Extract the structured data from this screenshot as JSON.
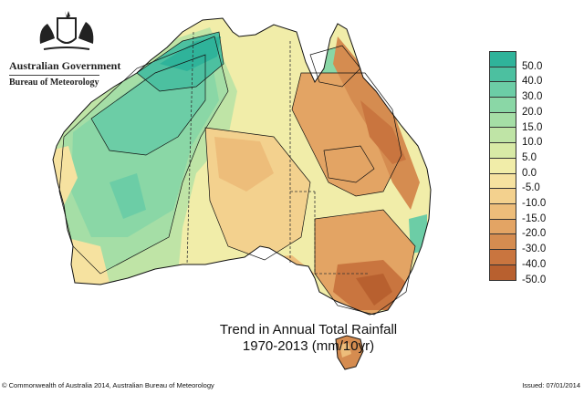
{
  "header": {
    "gov_name": "Australian Government",
    "org_name": "Bureau of Meteorology"
  },
  "map": {
    "title_line1": "Trend in Annual Total Rainfall",
    "title_line2": "1970-2013 (mm/10yr)",
    "regions": [
      {
        "name": "north-west-wet-trend",
        "category": "50.0"
      },
      {
        "name": "kimberley-wet",
        "category": "40.0"
      },
      {
        "name": "pilbara-wet",
        "category": "30.0"
      },
      {
        "name": "central-west-wet",
        "category": "20.0"
      },
      {
        "name": "central-dry-patch",
        "category": "-15.0"
      },
      {
        "name": "east-coast-dry",
        "category": "-30.0"
      },
      {
        "name": "south-east-dry",
        "category": "-40.0"
      },
      {
        "name": "tasmania-dry",
        "category": "-30.0"
      }
    ]
  },
  "legend": {
    "items": [
      {
        "label": "50.0",
        "color": "#2fb39a"
      },
      {
        "label": "40.0",
        "color": "#4cc0a0"
      },
      {
        "label": "30.0",
        "color": "#6ccda6"
      },
      {
        "label": "20.0",
        "color": "#8ad7a6"
      },
      {
        "label": "15.0",
        "color": "#a5dea6"
      },
      {
        "label": "10.0",
        "color": "#bfe4a6"
      },
      {
        "label": "5.0",
        "color": "#d8eaa6"
      },
      {
        "label": "0.0",
        "color": "#f1eda9"
      },
      {
        "label": "-5.0",
        "color": "#f6e2a0"
      },
      {
        "label": "-10.0",
        "color": "#f3d18e"
      },
      {
        "label": "-15.0",
        "color": "#edbd7a"
      },
      {
        "label": "-20.0",
        "color": "#e3a464"
      },
      {
        "label": "-30.0",
        "color": "#d58c50"
      },
      {
        "label": "-40.0",
        "color": "#c9753f"
      },
      {
        "label": "-50.0",
        "color": "#b8602f"
      }
    ]
  },
  "footer": {
    "copyright": "© Commonwealth of Australia 2014, Australian Bureau of Meteorology",
    "issued": "Issued: 07/01/2014"
  }
}
